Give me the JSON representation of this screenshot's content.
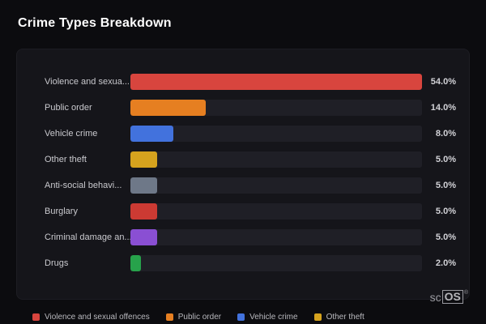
{
  "title": "Crime Types Breakdown",
  "watermark": {
    "prefix": "sc",
    "box": "OS",
    "reg": "®"
  },
  "chart_data": {
    "type": "bar",
    "orientation": "horizontal",
    "title": "Crime Types Breakdown",
    "categories": [
      "Violence and sexua...",
      "Public order",
      "Vehicle crime",
      "Other theft",
      "Anti-social behavi...",
      "Burglary",
      "Criminal damage an...",
      "Drugs"
    ],
    "values": [
      54.0,
      14.0,
      8.0,
      5.0,
      5.0,
      5.0,
      5.0,
      2.0
    ],
    "value_labels": [
      "54.0%",
      "14.0%",
      "8.0%",
      "5.0%",
      "5.0%",
      "5.0%",
      "5.0%",
      "2.0%"
    ],
    "colors": [
      "#d8453e",
      "#e67f21",
      "#4272dd",
      "#d6a31e",
      "#6e7888",
      "#cc3a33",
      "#8a4fd3",
      "#27a24b"
    ],
    "xlim": [
      0,
      54
    ],
    "grid": false,
    "legend_position": "bottom",
    "legend": [
      {
        "label": "Violence and sexual offences",
        "color": "#d8453e"
      },
      {
        "label": "Public order",
        "color": "#e67f21"
      },
      {
        "label": "Vehicle crime",
        "color": "#4272dd"
      },
      {
        "label": "Other theft",
        "color": "#d6a31e"
      }
    ],
    "track_color": "#1f1f26",
    "background_color": "#15151a"
  }
}
